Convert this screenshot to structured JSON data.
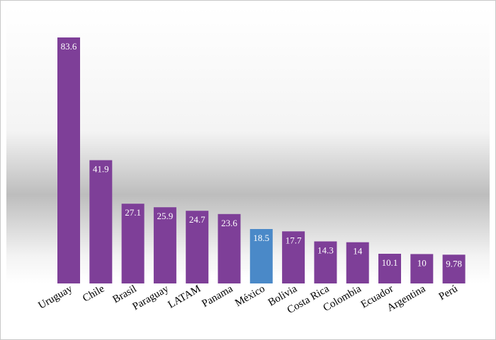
{
  "chart_data": {
    "type": "bar",
    "title": "",
    "xlabel": "",
    "ylabel": "",
    "categories": [
      "Uruguay",
      "Chile",
      "Brasil",
      "Paraguay",
      "LATAM",
      "Panama",
      "México",
      "Bolivia",
      "Costa Rica",
      "Colombia",
      "Ecuador",
      "Argentina",
      "Perú"
    ],
    "values": [
      83.6,
      41.9,
      27.1,
      25.9,
      24.7,
      23.6,
      18.5,
      17.7,
      14.3,
      14,
      10.1,
      10,
      9.78
    ],
    "value_labels": [
      "83.6",
      "41.9",
      "27.1",
      "25.9",
      "24.7",
      "23.6",
      "18.5",
      "17.7",
      "14.3",
      "14",
      "10.1",
      "10",
      "9.78"
    ],
    "ylim": [
      0,
      83.6
    ],
    "grid": false,
    "legend": "none",
    "bar_color": "#7e3f98",
    "highlight_category": "México",
    "highlight_color": "#4a89c8"
  }
}
